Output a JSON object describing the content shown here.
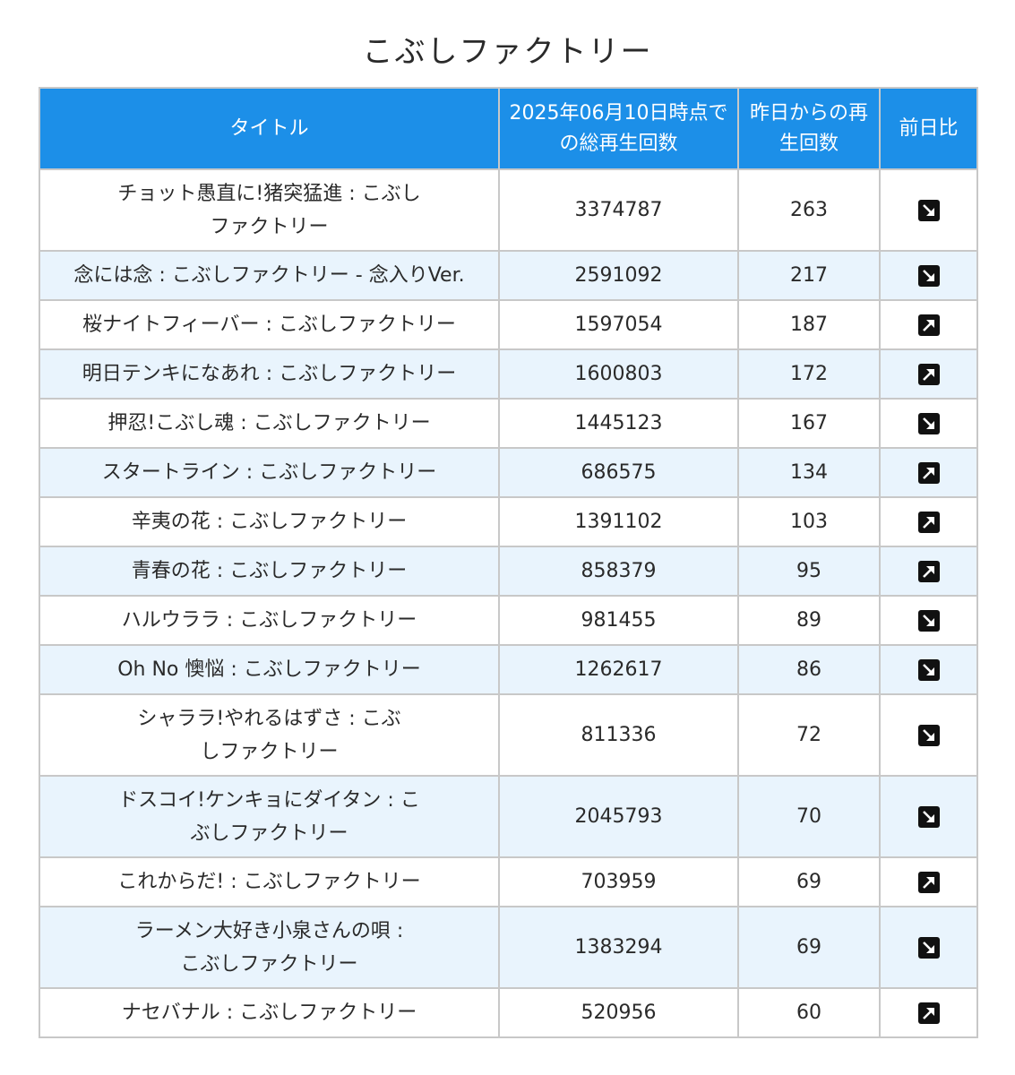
{
  "title": "こぶしファクトリー",
  "headers": {
    "title": "タイトル",
    "total": "2025年06月10日時点での総再生回数",
    "since_yesterday": "昨日からの再生回数",
    "diff": "前日比"
  },
  "rows": [
    {
      "title": "チョット愚直に!猪突猛進 : こぶしファクトリー",
      "total": "3374787",
      "yesterday": "263",
      "trend": "down"
    },
    {
      "title": "念には念 : こぶしファクトリー - 念入りVer.",
      "total": "2591092",
      "yesterday": "217",
      "trend": "down"
    },
    {
      "title": "桜ナイトフィーバー : こぶしファクトリー",
      "total": "1597054",
      "yesterday": "187",
      "trend": "up"
    },
    {
      "title": "明日テンキになあれ : こぶしファクトリー",
      "total": "1600803",
      "yesterday": "172",
      "trend": "up"
    },
    {
      "title": "押忍!こぶし魂 : こぶしファクトリー",
      "total": "1445123",
      "yesterday": "167",
      "trend": "down"
    },
    {
      "title": "スタートライン : こぶしファクトリー",
      "total": "686575",
      "yesterday": "134",
      "trend": "up"
    },
    {
      "title": "辛夷の花 : こぶしファクトリー",
      "total": "1391102",
      "yesterday": "103",
      "trend": "up"
    },
    {
      "title": "青春の花 : こぶしファクトリー",
      "total": "858379",
      "yesterday": "95",
      "trend": "up"
    },
    {
      "title": "ハルウララ : こぶしファクトリー",
      "total": "981455",
      "yesterday": "89",
      "trend": "down"
    },
    {
      "title": "Oh No 懊悩 : こぶしファクトリー",
      "total": "1262617",
      "yesterday": "86",
      "trend": "down"
    },
    {
      "title": "シャララ!やれるはずさ : こぶしファクトリー",
      "total": "811336",
      "yesterday": "72",
      "trend": "down"
    },
    {
      "title": "ドスコイ!ケンキョにダイタン : こぶしファクトリー",
      "total": "2045793",
      "yesterday": "70",
      "trend": "down"
    },
    {
      "title": "これからだ! : こぶしファクトリー",
      "total": "703959",
      "yesterday": "69",
      "trend": "up"
    },
    {
      "title": "ラーメン大好き小泉さんの唄 : こぶしファクトリー",
      "total": "1383294",
      "yesterday": "69",
      "trend": "down"
    },
    {
      "title": "ナセバナル : こぶしファクトリー",
      "total": "520956",
      "yesterday": "60",
      "trend": "up"
    }
  ],
  "colors": {
    "header_bg": "#1c8fe8",
    "stripe_bg": "#e9f4fd",
    "border": "#c8c8c8"
  },
  "icons": {
    "up": "arrow-up-right-icon",
    "down": "arrow-down-right-icon"
  }
}
